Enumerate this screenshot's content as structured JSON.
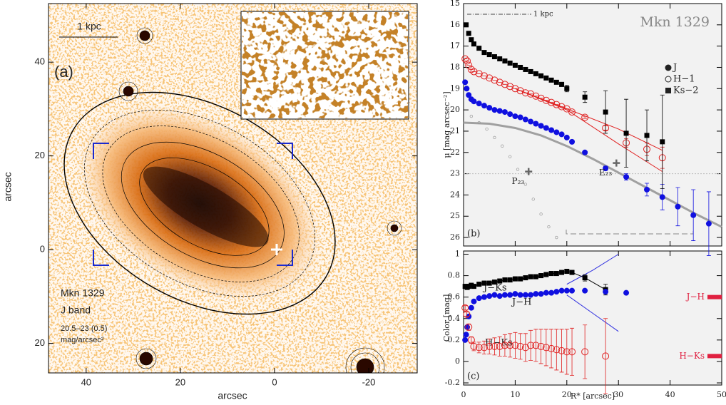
{
  "chart_data": [
    {
      "type": "image",
      "xlabel": "arcsec",
      "ylabel": "arcsec",
      "panel_label": "(a)",
      "scale_bar": "1 kpc",
      "object": "Mkn 1329",
      "band": "J band",
      "contour_levels": "20.5–23 (0.5)",
      "contour_unit": "mag/arcsec²",
      "xlim": [
        48,
        -30.3
      ],
      "ylim": [
        -26.3,
        52.5
      ],
      "xticks": [
        40,
        20,
        0,
        -20
      ],
      "yticks": [
        40,
        20,
        0,
        {
          "value": -20,
          "label": "20"
        }
      ]
    },
    {
      "type": "scatter",
      "title": "Mkn 1329",
      "ylabel": "μ [mag arcsec⁻²]",
      "panel_label": "(b)",
      "scale_bar": "1 kpc",
      "xlim": [
        0,
        50
      ],
      "ylim": [
        26.4,
        15
      ],
      "xticks": [
        0,
        10,
        20,
        30,
        40,
        50
      ],
      "xticklabels": false,
      "yticks": [
        15,
        16,
        17,
        18,
        19,
        20,
        21,
        22,
        23,
        24,
        25,
        26
      ],
      "hline": 23,
      "legend": "upper right",
      "series": [
        {
          "name": "J",
          "color": "#1010e0",
          "marker": "circle",
          "x": [
            0.3,
            0.6,
            1,
            1.5,
            2,
            3,
            4,
            5,
            6,
            7,
            8,
            9,
            10,
            11,
            12,
            13,
            14,
            15,
            16,
            17,
            18,
            19,
            20,
            21,
            23.5,
            27.5,
            31.5,
            35.5,
            38.5,
            41.5,
            44.5,
            47.5
          ],
          "values": [
            18.7,
            19.0,
            19.3,
            19.5,
            19.6,
            19.7,
            19.8,
            19.9,
            20.0,
            20.05,
            20.1,
            20.2,
            20.3,
            20.35,
            20.45,
            20.55,
            20.65,
            20.75,
            20.85,
            20.95,
            21.05,
            21.15,
            21.3,
            21.5,
            22.0,
            22.75,
            23.15,
            23.75,
            24.1,
            24.55,
            24.95,
            25.35
          ],
          "errors": [
            0,
            0,
            0,
            0,
            0,
            0,
            0,
            0,
            0,
            0,
            0,
            0,
            0,
            0,
            0,
            0,
            0,
            0,
            0,
            0,
            0,
            0,
            0,
            0,
            0.05,
            0.1,
            0.15,
            0.3,
            0.6,
            0.9,
            1.2,
            1.5
          ]
        },
        {
          "name": "H−1",
          "color": "#e02020",
          "marker": "open-circle",
          "x": [
            0.3,
            0.7,
            1,
            1.5,
            2,
            3,
            4,
            5,
            6,
            7,
            8,
            9,
            10,
            11,
            12,
            13,
            14,
            15,
            16,
            17,
            18,
            19,
            20,
            21,
            23.5,
            27.5,
            31.5,
            35.5,
            38.5
          ],
          "values": [
            17.6,
            17.7,
            17.9,
            18.1,
            18.2,
            18.3,
            18.4,
            18.5,
            18.6,
            18.7,
            18.8,
            18.9,
            19.0,
            19.1,
            19.2,
            19.25,
            19.35,
            19.45,
            19.55,
            19.65,
            19.75,
            19.85,
            19.95,
            20.1,
            20.35,
            20.85,
            21.55,
            21.85,
            22.25
          ],
          "errors": [
            0,
            0,
            0,
            0,
            0,
            0,
            0,
            0,
            0,
            0,
            0,
            0,
            0,
            0,
            0,
            0,
            0,
            0,
            0,
            0,
            0,
            0,
            0,
            0,
            0.05,
            0.1,
            0.2,
            0.3,
            0.5
          ]
        },
        {
          "name": "Ks−2",
          "color": "#000000",
          "marker": "square",
          "x": [
            0.5,
            1,
            1.5,
            2,
            3,
            4,
            5,
            6,
            7,
            8,
            9,
            10,
            11,
            12,
            13,
            14,
            15,
            16,
            17,
            18,
            19,
            20,
            23.5,
            27.5,
            31.5,
            35.5,
            38.5
          ],
          "values": [
            16.0,
            16.4,
            16.7,
            16.9,
            17.1,
            17.3,
            17.4,
            17.5,
            17.6,
            17.7,
            17.8,
            17.9,
            18.0,
            18.1,
            18.2,
            18.3,
            18.4,
            18.5,
            18.6,
            18.7,
            18.8,
            19.0,
            19.4,
            20.1,
            21.1,
            21.2,
            21.5
          ],
          "errors": [
            0,
            0,
            0,
            0,
            0,
            0,
            0,
            0,
            0,
            0,
            0,
            0,
            0,
            0,
            0,
            0,
            0,
            0,
            0.05,
            0.05,
            0.1,
            0.15,
            0.25,
            1.0,
            1.6,
            1.2,
            2.2
          ]
        },
        {
          "color": "#999999",
          "marker": "small-open-circle",
          "x": [
            1.5,
            3,
            4.5,
            6,
            7.5,
            9,
            10.5,
            12,
            13.5,
            15,
            16.5,
            18
          ],
          "values": [
            20.3,
            20.6,
            20.9,
            21.3,
            21.7,
            22.2,
            22.8,
            23.5,
            24.2,
            24.9,
            25.5,
            26.0
          ]
        }
      ],
      "curves": [
        {
          "color": "#a0a0a0",
          "width": 3,
          "x": [
            0,
            5,
            10,
            15,
            20,
            25,
            30,
            35,
            40,
            45,
            50
          ],
          "values": [
            20.6,
            20.65,
            20.85,
            21.2,
            21.7,
            22.3,
            22.95,
            23.6,
            24.25,
            24.9,
            25.5
          ]
        },
        {
          "color": "#e02020",
          "width": 1,
          "x": [
            10,
            20,
            30,
            38.5
          ],
          "values": [
            19.0,
            19.95,
            20.9,
            21.9
          ]
        },
        {
          "color": "#e02020",
          "width": 1,
          "x": [
            10,
            20,
            30,
            38.5
          ],
          "values": [
            19.0,
            20.0,
            21.6,
            22.9
          ]
        }
      ],
      "markers": [
        {
          "label": "P₂₃",
          "x": 12.6,
          "y": 22.9
        },
        {
          "label": "E₂₃",
          "x": 29.6,
          "y": 22.5
        }
      ]
    },
    {
      "type": "scatter",
      "xlabel": "R* [arcsec]",
      "ylabel": "Color [mag]",
      "panel_label": "(c)",
      "xlim": [
        0,
        50
      ],
      "ylim": [
        -0.22,
        1.03
      ],
      "xticks": [
        0,
        10,
        20,
        30,
        40,
        50
      ],
      "yticks": [
        -0.2,
        0,
        0.2,
        0.4,
        0.6,
        0.8,
        1
      ],
      "series": [
        {
          "name": "J−Ks",
          "color": "#000000",
          "marker": "square",
          "connect": true,
          "x": [
            0.3,
            0.7,
            1,
            1.5,
            2,
            3,
            4,
            5,
            6,
            7,
            8,
            9,
            10,
            11,
            12,
            13,
            14,
            15,
            16,
            17,
            18,
            19,
            20,
            21,
            23.5,
            27.5
          ],
          "values": [
            0.7,
            0.69,
            0.7,
            0.71,
            0.7,
            0.72,
            0.73,
            0.73,
            0.74,
            0.75,
            0.76,
            0.76,
            0.77,
            0.77,
            0.78,
            0.79,
            0.79,
            0.8,
            0.81,
            0.82,
            0.82,
            0.83,
            0.84,
            0.83,
            0.78,
            0.67
          ],
          "errors": [
            0.02,
            0.02,
            0.02,
            0.02,
            0.02,
            0.02,
            0.02,
            0.02,
            0.02,
            0.02,
            0.02,
            0.02,
            0.02,
            0.02,
            0.02,
            0.02,
            0.02,
            0.02,
            0.02,
            0.02,
            0.02,
            0.02,
            0.02,
            0.02,
            0.03,
            0.05
          ]
        },
        {
          "name": "J−H",
          "color": "#1010e0",
          "marker": "circle",
          "x": [
            0.3,
            0.5,
            0.7,
            1,
            1.5,
            2,
            3,
            4,
            5,
            6,
            7,
            8,
            9,
            10,
            11,
            12,
            13,
            14,
            15,
            16,
            17,
            18,
            19,
            20,
            21,
            23.5,
            27.5,
            31.5
          ],
          "values": [
            0.2,
            0.25,
            0.32,
            0.42,
            0.5,
            0.56,
            0.59,
            0.6,
            0.61,
            0.62,
            0.61,
            0.62,
            0.62,
            0.63,
            0.62,
            0.62,
            0.62,
            0.63,
            0.63,
            0.64,
            0.64,
            0.65,
            0.66,
            0.66,
            0.66,
            0.66,
            0.65,
            0.64
          ]
        },
        {
          "name": "H−Ks",
          "color": "#e02020",
          "marker": "open-circle",
          "x": [
            0.3,
            0.6,
            1,
            1.5,
            2,
            3,
            4,
            5,
            6,
            7,
            8,
            9,
            10,
            11,
            12,
            13,
            14,
            15,
            16,
            17,
            18,
            19,
            20,
            21,
            23.5,
            27.5
          ],
          "values": [
            0.5,
            0.44,
            0.32,
            0.2,
            0.14,
            0.13,
            0.13,
            0.14,
            0.14,
            0.14,
            0.15,
            0.15,
            0.15,
            0.14,
            0.13,
            0.15,
            0.15,
            0.14,
            0.13,
            0.12,
            0.11,
            0.1,
            0.09,
            0.09,
            0.09,
            0.05
          ],
          "errors": [
            0.02,
            0.02,
            0.03,
            0.03,
            0.04,
            0.05,
            0.06,
            0.07,
            0.08,
            0.09,
            0.1,
            0.11,
            0.12,
            0.12,
            0.13,
            0.14,
            0.15,
            0.16,
            0.17,
            0.18,
            0.19,
            0.2,
            0.21,
            0.22,
            0.25,
            0.35
          ]
        }
      ],
      "curves": [
        {
          "color": "#3030e0",
          "width": 1,
          "x": [
            20,
            25,
            30
          ],
          "values": [
            0.72,
            0.85,
            1.0
          ]
        },
        {
          "color": "#3030e0",
          "width": 1,
          "x": [
            20,
            25,
            30
          ],
          "values": [
            0.62,
            0.45,
            0.28
          ]
        }
      ],
      "side_labels": [
        {
          "text": "J−H",
          "y": 0.6,
          "color": "#e02040"
        },
        {
          "text": "H−Ks",
          "y": 0.05,
          "color": "#e02040"
        }
      ]
    }
  ]
}
